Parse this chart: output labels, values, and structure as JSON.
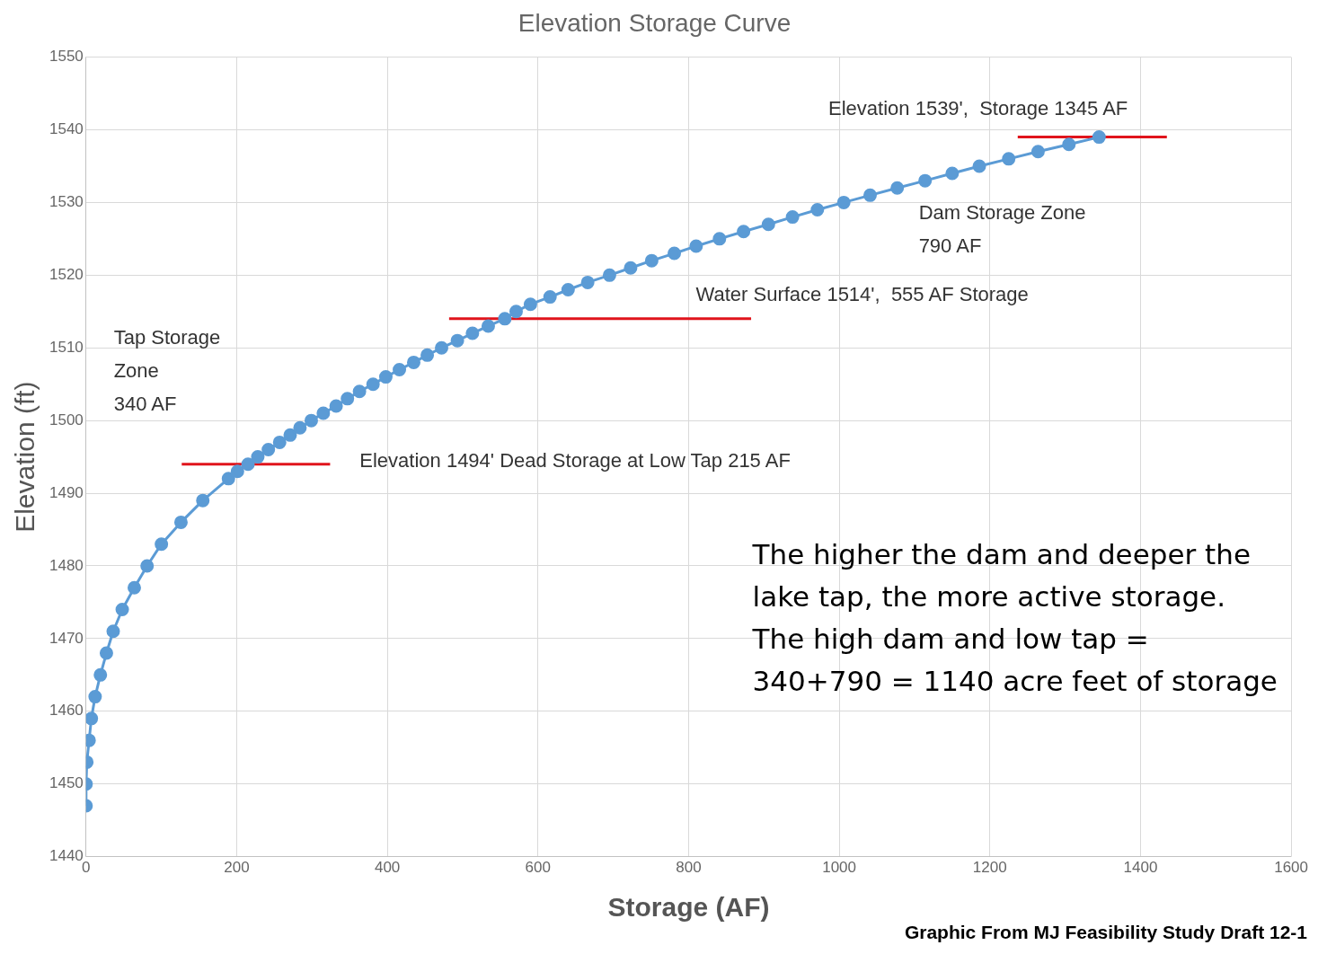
{
  "chart_data": {
    "type": "line",
    "title": "Elevation Storage Curve",
    "xlabel": "Storage (AF)",
    "ylabel": "Elevation (ft)",
    "xlim": [
      0,
      1600
    ],
    "xticks": [
      0,
      200,
      400,
      600,
      800,
      1000,
      1200,
      1400,
      1600
    ],
    "ylim": [
      1440,
      1550
    ],
    "yticks": [
      1440,
      1450,
      1460,
      1470,
      1480,
      1490,
      1500,
      1510,
      1520,
      1530,
      1540,
      1550
    ],
    "grid": true,
    "legend": false,
    "marker": "circle",
    "line_style": "solid",
    "series": [
      {
        "color": "#5b9bd5",
        "x": [
          0,
          0,
          1,
          4,
          7,
          12,
          19,
          27,
          36,
          48,
          64,
          81,
          100,
          126,
          155,
          189,
          201,
          215,
          228,
          242,
          257,
          271,
          284,
          299,
          315,
          332,
          347,
          363,
          381,
          398,
          416,
          435,
          453,
          472,
          493,
          513,
          534,
          556,
          571,
          590,
          616,
          640,
          666,
          695,
          723,
          751,
          781,
          810,
          841,
          873,
          906,
          938,
          971,
          1006,
          1041,
          1077,
          1114,
          1150,
          1186,
          1225,
          1264,
          1305,
          1345
        ],
        "values": [
          1447,
          1450,
          1453,
          1456,
          1459,
          1462,
          1465,
          1468,
          1471,
          1474,
          1477,
          1480,
          1483,
          1486,
          1489,
          1492,
          1493,
          1494,
          1495,
          1496,
          1497,
          1498,
          1499,
          1500,
          1501,
          1502,
          1503,
          1504,
          1505,
          1506,
          1507,
          1508,
          1509,
          1510,
          1511,
          1512,
          1513,
          1514,
          1515,
          1516,
          1517,
          1518,
          1519,
          1520,
          1521,
          1522,
          1523,
          1524,
          1525,
          1526,
          1527,
          1528,
          1529,
          1530,
          1531,
          1532,
          1533,
          1534,
          1535,
          1536,
          1537,
          1538,
          1539
        ]
      },
      {
        "type": "line",
        "color": "#e0141c",
        "marker": "none",
        "x": [
          127,
          324
        ],
        "values": [
          1494,
          1494
        ]
      },
      {
        "type": "line",
        "color": "#e0141c",
        "marker": "none",
        "x": [
          482,
          883
        ],
        "values": [
          1514,
          1514
        ]
      },
      {
        "type": "line",
        "color": "#e0141c",
        "marker": "none",
        "x": [
          1237,
          1435
        ],
        "values": [
          1539,
          1539
        ]
      }
    ],
    "annotations": [
      "Elevation 1539',  Storage 1345 AF",
      "Dam Storage Zone\n790 AF",
      "Water Surface 1514',  555 AF Storage",
      "Tap Storage\nZone\n340 AF",
      "Elevation 1494' Dead Storage at Low Tap 215 AF",
      "The higher the dam and deeper the\nlake tap, the more active storage.\nThe high dam and low tap =\n340+790 = 1140 acre feet of storage",
      "Graphic From MJ Feasibility Study Draft 12-1"
    ]
  }
}
